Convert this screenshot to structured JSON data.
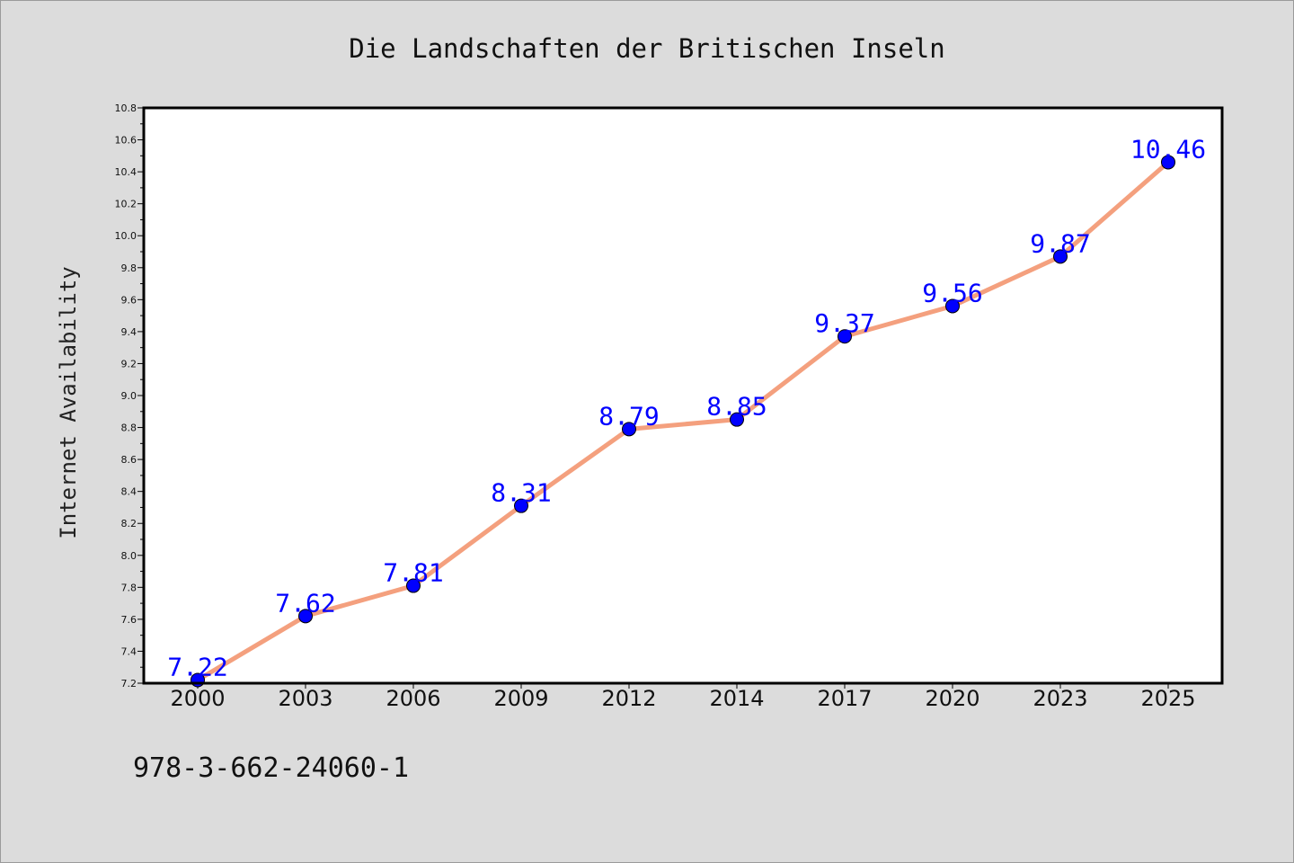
{
  "chart_data": {
    "type": "line",
    "title": "Die Landschaften der Britischen Inseln",
    "xlabel": "",
    "ylabel": "Internet Availability",
    "categories": [
      "2000",
      "2003",
      "2006",
      "2009",
      "2012",
      "2014",
      "2017",
      "2020",
      "2023",
      "2025"
    ],
    "series": [
      {
        "values": [
          7.22,
          7.62,
          7.81,
          8.31,
          8.79,
          8.85,
          9.37,
          9.56,
          9.87,
          10.46
        ]
      }
    ],
    "data_labels": [
      "7.22",
      "7.62",
      "7.81",
      "8.31",
      "8.79",
      "8.85",
      "9.37",
      "9.56",
      "9.87",
      "10.46"
    ],
    "ylim": [
      7.2,
      10.8
    ],
    "yticks": [
      "7.2",
      "7.4",
      "7.6",
      "7.8",
      "8.0",
      "8.2",
      "8.4",
      "8.6",
      "8.8",
      "9.0",
      "9.2",
      "9.4",
      "9.6",
      "9.8",
      "10.0",
      "10.2",
      "10.4",
      "10.6",
      "10.8"
    ],
    "grid": false,
    "legend": "none",
    "colors": {
      "line": "#f4a07e",
      "marker": "#0000ff",
      "data_label": "#0000ff",
      "background": "#dcdcdc",
      "plot_background": "#ffffff"
    }
  },
  "footer": {
    "isbn": "978-3-662-24060-1"
  }
}
